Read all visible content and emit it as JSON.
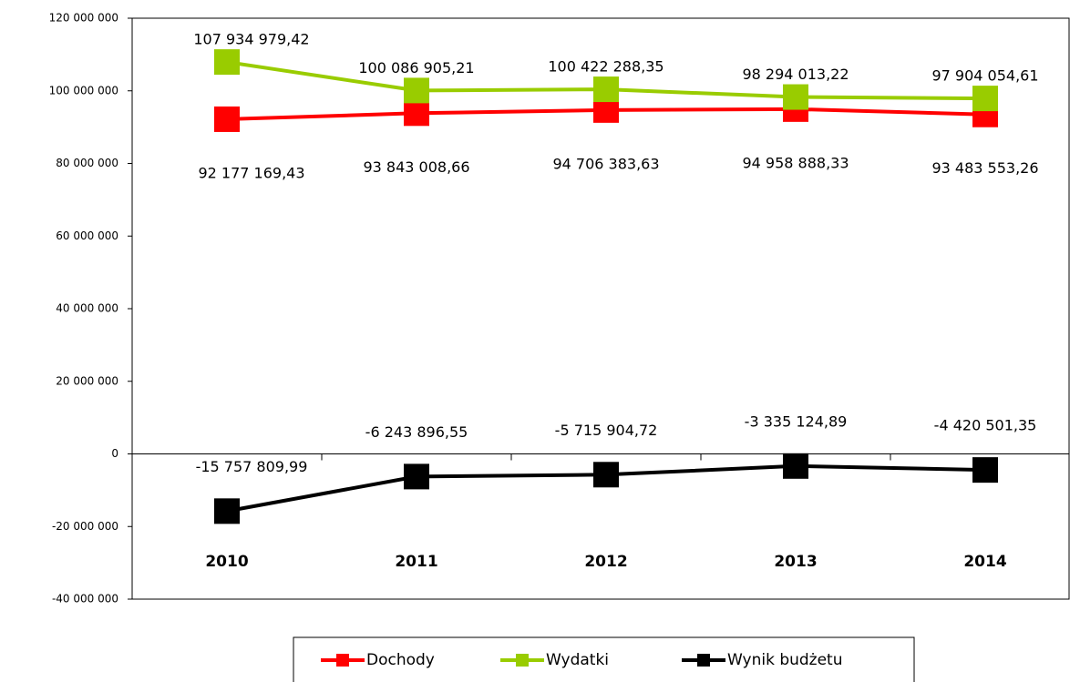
{
  "chart_data": {
    "type": "line",
    "categories": [
      "2010",
      "2011",
      "2012",
      "2013",
      "2014"
    ],
    "series": [
      {
        "name": "Dochody",
        "color": "#ff0000",
        "values": [
          92177169.43,
          93843008.66,
          94706383.63,
          94958888.33,
          93483553.26
        ],
        "value_labels": [
          "92 177 169,43",
          "93 843 008,66",
          "94 706 383,63",
          "94 958 888,33",
          "93 483 553,26"
        ]
      },
      {
        "name": "Wydatki",
        "color": "#99cc00",
        "values": [
          107934979.42,
          100086905.21,
          100422288.35,
          98294013.22,
          97904054.61
        ],
        "value_labels": [
          "107 934 979,42",
          "100 086 905,21",
          "100 422 288,35",
          "98 294 013,22",
          "97 904 054,61"
        ]
      },
      {
        "name": "Wynik budżetu",
        "color": "#000000",
        "values": [
          -15757809.99,
          -6243896.55,
          -5715904.72,
          -3335124.89,
          -4420501.35
        ],
        "value_labels": [
          "-15 757 809,99",
          "-6 243 896,55",
          "-5 715 904,72",
          "-3 335 124,89",
          "-4 420 501,35"
        ]
      }
    ],
    "ylim": [
      -40000000,
      120000000
    ],
    "yticks": [
      {
        "value": -40000000,
        "label": "-40 000 000"
      },
      {
        "value": -20000000,
        "label": "-20 000 000"
      },
      0,
      {
        "value": 20000000,
        "label": "20 000 000"
      },
      {
        "value": 40000000,
        "label": "40 000 000"
      },
      {
        "value": 60000000,
        "label": "60 000 000"
      },
      {
        "value": 80000000,
        "label": "80 000 000"
      },
      {
        "value": 100000000,
        "label": "100 000 000"
      },
      {
        "value": 120000000,
        "label": "120 000 000"
      }
    ],
    "legend": "bottom"
  }
}
